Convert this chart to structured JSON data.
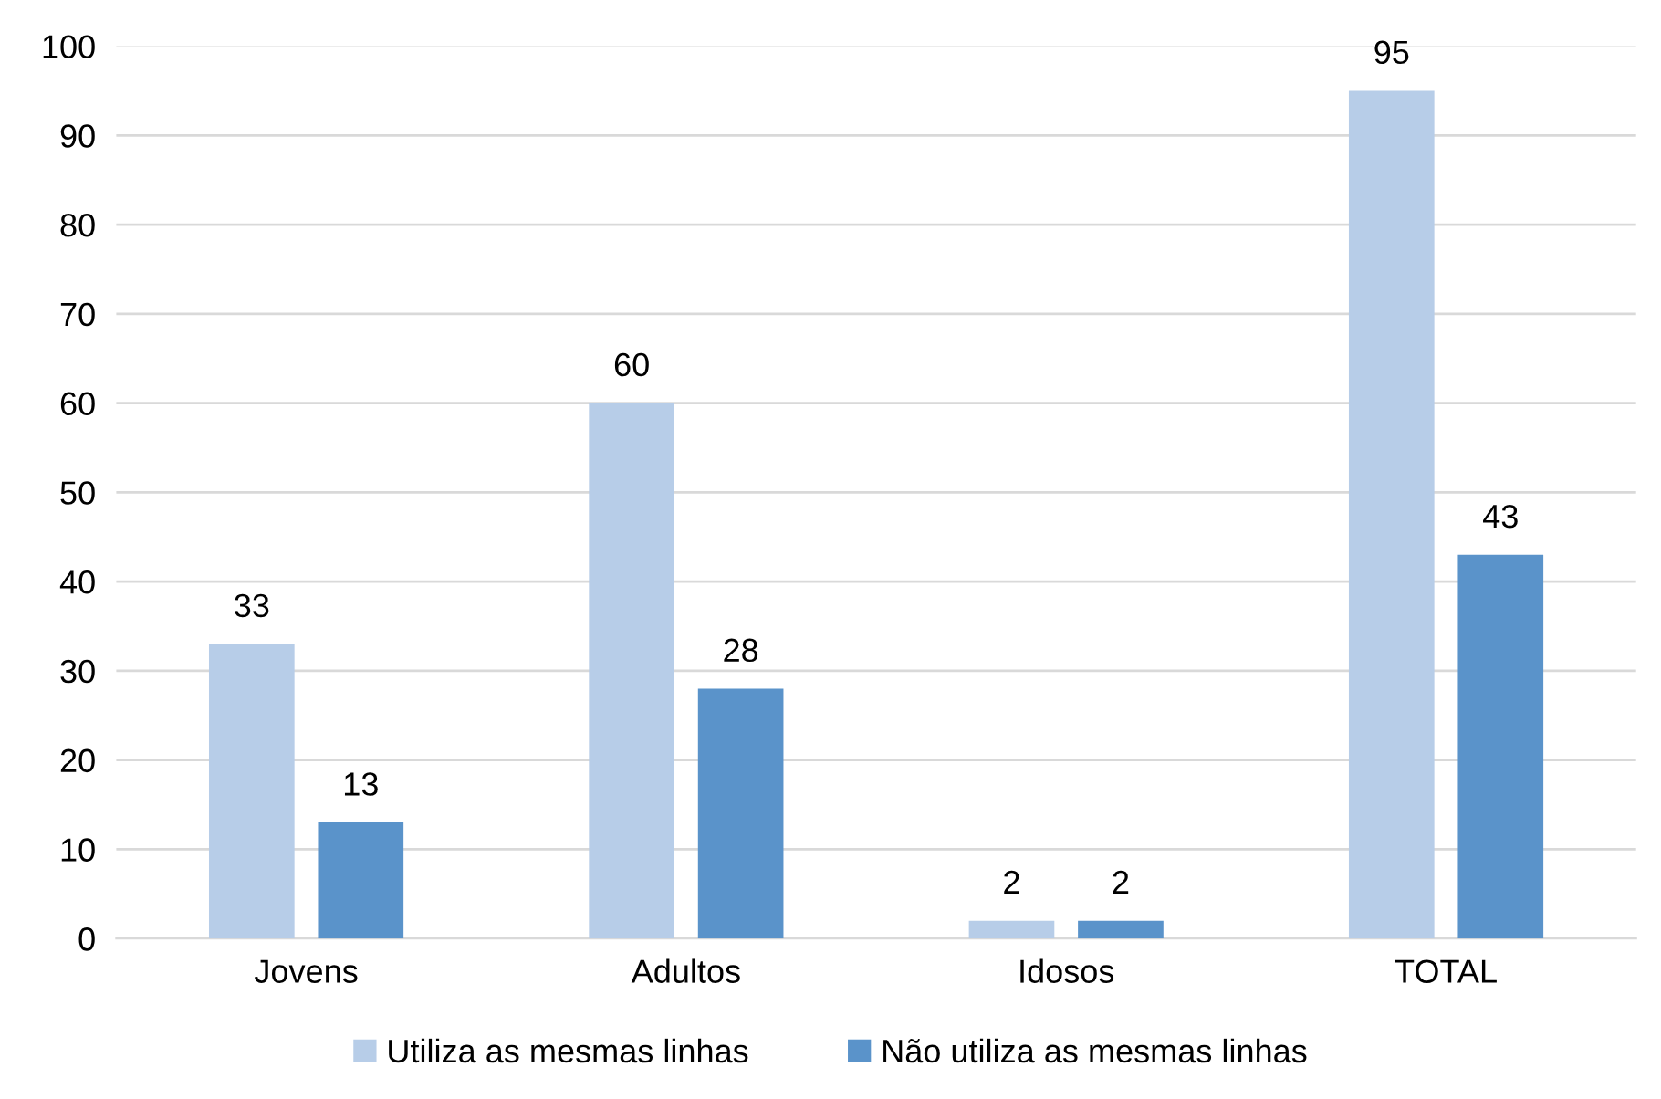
{
  "chart_data": {
    "type": "bar",
    "categories": [
      "Jovens",
      "Adultos",
      "Idosos",
      "TOTAL"
    ],
    "series": [
      {
        "name": "Utiliza as mesmas linhas",
        "color": "#b7cde8",
        "values": [
          33,
          60,
          2,
          95
        ]
      },
      {
        "name": "Não utiliza as mesmas linhas",
        "color": "#5a93ca",
        "values": [
          13,
          28,
          2,
          43
        ]
      }
    ],
    "ylim": [
      0,
      100
    ],
    "yticks": [
      0,
      10,
      20,
      30,
      40,
      50,
      60,
      70,
      80,
      90,
      100
    ],
    "grid": "y",
    "legend": "bottom",
    "data_labels": true
  }
}
